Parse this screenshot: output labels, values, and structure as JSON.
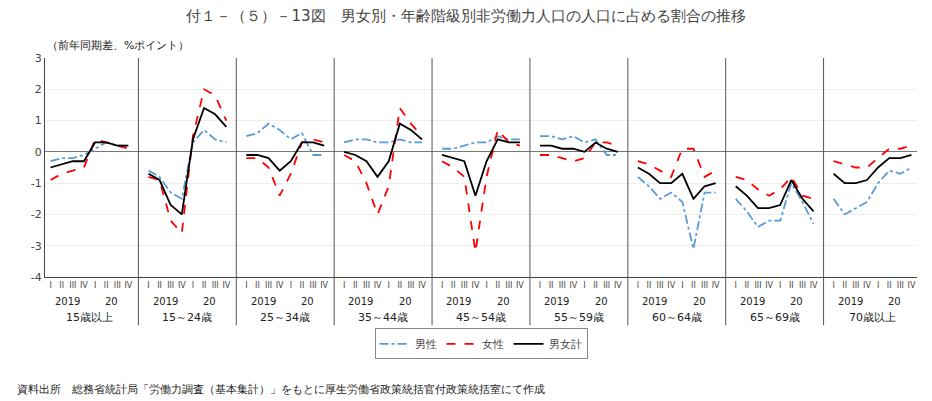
{
  "chart_data": {
    "type": "line",
    "title": "付１－（５）－13図　男女別・年齢階級別非労働力人口の人口に占める割合の推移",
    "subtitle": "（前年同期差、%ポイント）",
    "annotations": [
      "資料出所　総務省統計局「労働力調査（基本集計）」をもとに厚生労働省政策統括官付政策統括室にて作成"
    ],
    "groups": [
      "15歳以上",
      "15～24歳",
      "25～34歳",
      "35～44歳",
      "45～54歳",
      "55～59歳",
      "60～64歳",
      "65～69歳",
      "70歳以上"
    ],
    "periods": [
      "2019",
      "20"
    ],
    "categories": [
      "I",
      "II",
      "III",
      "IV",
      "I",
      "II",
      "III",
      "IV",
      "I",
      "II",
      "III",
      "IV",
      "I",
      "II",
      "III",
      "IV",
      "I",
      "II",
      "III",
      "IV",
      "I",
      "II",
      "III",
      "IV",
      "I",
      "II",
      "III",
      "IV",
      "I",
      "II",
      "III",
      "IV",
      "I",
      "II",
      "III",
      "IV",
      "I",
      "II",
      "III",
      "IV",
      "I",
      "II",
      "III",
      "IV",
      "I",
      "II",
      "III",
      "IV",
      "I",
      "II",
      "III",
      "IV",
      "I",
      "II",
      "III",
      "IV",
      "I",
      "II",
      "III",
      "IV",
      "I",
      "II",
      "III",
      "IV",
      "I",
      "II",
      "III",
      "IV",
      "I",
      "II",
      "III",
      "IV"
    ],
    "series": [
      {
        "name": "男性",
        "color": "#5B9BD5",
        "line_style": "dashdot",
        "values": [
          -0.3,
          -0.2,
          -0.2,
          -0.1,
          0.1,
          0.3,
          0.2,
          0.2,
          -0.6,
          -0.8,
          -1.3,
          -1.5,
          0.3,
          0.7,
          0.4,
          0.3,
          0.5,
          0.6,
          0.9,
          0.7,
          0.4,
          0.6,
          -0.1,
          -0.1,
          0.3,
          0.4,
          0.4,
          0.3,
          0.3,
          0.4,
          0.3,
          0.3,
          0.1,
          0.1,
          0.2,
          0.3,
          0.3,
          0.5,
          0.4,
          0.4,
          0.5,
          0.5,
          0.4,
          0.5,
          0.3,
          0.4,
          -0.1,
          -0.1,
          -0.8,
          -1.1,
          -1.5,
          -1.3,
          -1.6,
          -3.1,
          -1.3,
          -1.3,
          -1.5,
          -1.9,
          -2.4,
          -2.2,
          -2.2,
          -1.0,
          -1.6,
          -2.3,
          -1.5,
          -2.0,
          -1.8,
          -1.6,
          -1.0,
          -0.6,
          -0.7,
          -0.5
        ]
      },
      {
        "name": "女性",
        "color": "#FF0000",
        "line_style": "dashed",
        "values": [
          -0.9,
          -0.7,
          -0.6,
          -0.5,
          0.4,
          0.3,
          0.2,
          0.1,
          -0.8,
          -0.9,
          -2.2,
          -2.6,
          0.5,
          2.0,
          1.8,
          1.0,
          -0.2,
          -0.2,
          -0.5,
          -1.4,
          -0.7,
          0.3,
          0.4,
          0.3,
          -0.1,
          -0.3,
          -1.0,
          -2.0,
          -1.1,
          1.4,
          0.9,
          0.5,
          -0.3,
          -0.5,
          -0.8,
          -3.2,
          -0.8,
          0.7,
          0.3,
          0.2,
          -0.1,
          -0.1,
          -0.2,
          -0.3,
          -0.2,
          0.3,
          0.3,
          0.2,
          -0.3,
          -0.4,
          -0.6,
          -0.8,
          0.1,
          0.1,
          -0.8,
          -0.6,
          -0.8,
          -0.9,
          -1.2,
          -1.4,
          -1.2,
          -0.8,
          -1.4,
          -1.5,
          -0.3,
          -0.4,
          -0.5,
          -0.5,
          -0.2,
          0.1,
          0.1,
          0.2
        ]
      },
      {
        "name": "男女計",
        "color": "#000000",
        "line_style": "solid",
        "values": [
          -0.5,
          -0.4,
          -0.3,
          -0.3,
          0.3,
          0.3,
          0.2,
          0.2,
          -0.7,
          -0.9,
          -1.7,
          -2.0,
          0.4,
          1.4,
          1.2,
          0.8,
          -0.1,
          -0.1,
          -0.2,
          -0.6,
          -0.3,
          0.3,
          0.3,
          0.2,
          0.0,
          -0.1,
          -0.3,
          -0.8,
          -0.3,
          0.9,
          0.7,
          0.4,
          -0.1,
          -0.2,
          -0.3,
          -1.4,
          -0.3,
          0.4,
          0.3,
          0.3,
          0.2,
          0.2,
          0.1,
          0.1,
          0.0,
          0.3,
          0.1,
          0.0,
          -0.5,
          -0.7,
          -1.0,
          -1.0,
          -0.7,
          -1.5,
          -1.1,
          -1.0,
          -1.1,
          -1.4,
          -1.8,
          -1.8,
          -1.7,
          -0.9,
          -1.5,
          -1.9,
          -0.7,
          -1.0,
          -1.0,
          -0.9,
          -0.5,
          -0.2,
          -0.2,
          -0.1
        ]
      }
    ],
    "ylim": [
      -4,
      3
    ],
    "yticks": [
      -4,
      -3,
      -2,
      -1,
      0,
      1,
      2,
      3
    ],
    "grid": true
  }
}
